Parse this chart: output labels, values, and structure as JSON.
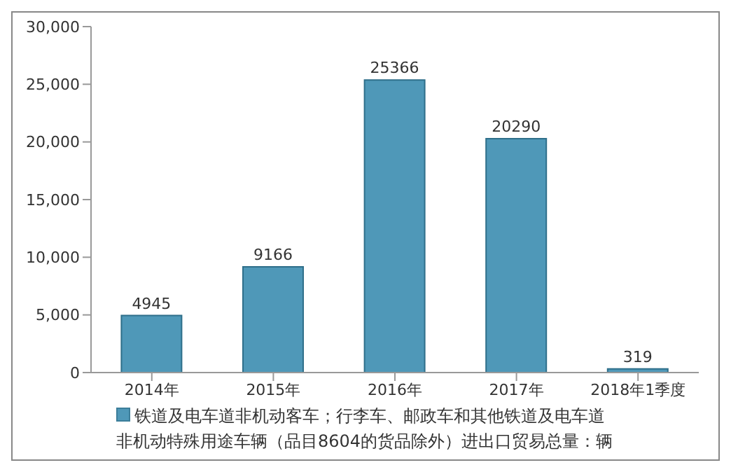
{
  "chart_data": {
    "type": "bar",
    "categories": [
      "2014年",
      "2015年",
      "2016年",
      "2017年",
      "2018年1季度"
    ],
    "series": [
      {
        "name": "铁道及电车道非机动客车；行李车、邮政车和其他铁道及电车道非机动特殊用途车辆（品目8604的货品除外）进出口贸易总量：辆",
        "color": "#4f98b8",
        "values": [
          4945,
          9166,
          25366,
          20290,
          319
        ]
      }
    ],
    "ylim": [
      0,
      30000
    ],
    "yticks": [
      {
        "value": 0,
        "label": "0"
      },
      {
        "value": 5000,
        "label": "5,000"
      },
      {
        "value": 10000,
        "label": "10,000"
      },
      {
        "value": 15000,
        "label": "15,000"
      },
      {
        "value": 20000,
        "label": "20,000"
      },
      {
        "value": 25000,
        "label": "25,000"
      },
      {
        "value": 30000,
        "label": "30,000"
      }
    ],
    "grid": false,
    "legend": "bottom",
    "data_labels": true
  }
}
